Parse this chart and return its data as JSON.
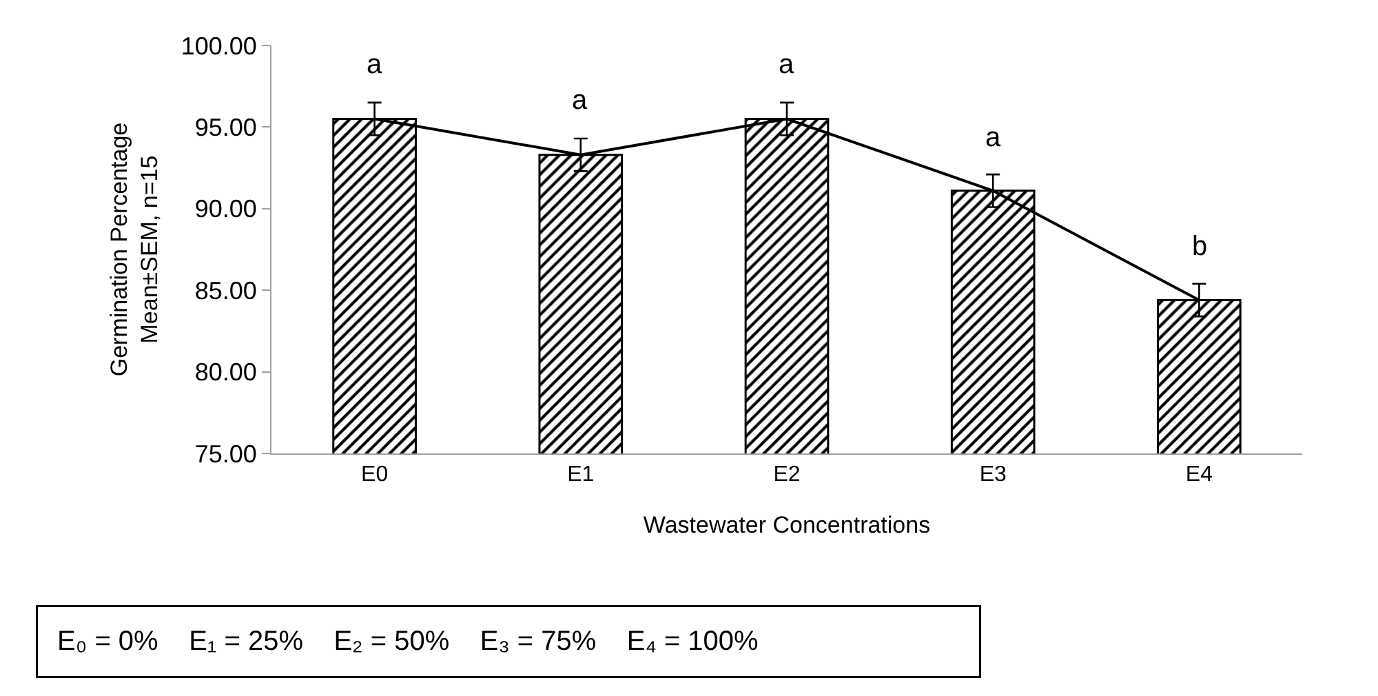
{
  "chart_data": {
    "type": "bar",
    "xlabel": "Wastewater Concentrations",
    "ylabel": "Germination Percentage\nMean±SEM, n=15",
    "categories": [
      "E0",
      "E1",
      "E2",
      "E3",
      "E4"
    ],
    "series": [
      {
        "color": "#000000",
        "values": [
          95.5,
          93.3,
          95.5,
          91.1,
          84.4
        ],
        "errors": [
          1.0,
          1.0,
          1.0,
          1.0,
          1.0
        ],
        "value_labels": [
          "a",
          "a",
          "a",
          "a",
          "b"
        ]
      },
      {
        "type": "line",
        "color": "#000000",
        "values": [
          95.5,
          93.3,
          95.5,
          91.1,
          84.4
        ],
        "marker": "none"
      }
    ],
    "ylim": [
      75,
      100
    ],
    "yticks": [
      {
        "value": 75,
        "label": "75.00"
      },
      {
        "value": 80,
        "label": "80.00"
      },
      {
        "value": 85,
        "label": "85.00"
      },
      {
        "value": 90,
        "label": "90.00"
      },
      {
        "value": 95,
        "label": "95.00"
      },
      {
        "value": 100,
        "label": "100.00"
      }
    ],
    "grid": false,
    "annotations": [
      "E₀ = 0%    E₁ = 25%    E₂ = 50%    E₃ = 75%    E₄ = 100%"
    ]
  }
}
